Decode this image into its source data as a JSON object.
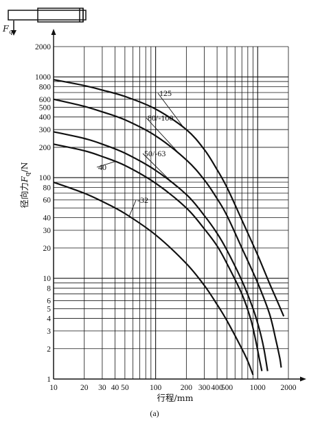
{
  "icon": {
    "force_symbol": "F",
    "force_subscript": "q",
    "name": "cylinder-icon"
  },
  "caption": "(a)",
  "chart_data": {
    "type": "line",
    "title": "",
    "xlabel": "行程/mm",
    "ylabel_prefix": "径向力",
    "ylabel_symbol": "F",
    "ylabel_subscript": "q",
    "ylabel_suffix": "/N",
    "x_scale": "log",
    "y_scale": "log",
    "xlim": [
      10,
      2000
    ],
    "ylim": [
      1,
      2000
    ],
    "grid": true,
    "x_ticks": [
      {
        "v": 10,
        "label": "10"
      },
      {
        "v": 20,
        "label": "20"
      },
      {
        "v": 30,
        "label": "30"
      },
      {
        "v": 40,
        "label": "40"
      },
      {
        "v": 50,
        "label": "50"
      },
      {
        "v": 100,
        "label": "100"
      },
      {
        "v": 200,
        "label": "200"
      },
      {
        "v": 300,
        "label": "300"
      },
      {
        "v": 400,
        "label": "400"
      },
      {
        "v": 500,
        "label": "500"
      },
      {
        "v": 1000,
        "label": "1000"
      },
      {
        "v": 2000,
        "label": "2000"
      }
    ],
    "y_ticks": [
      {
        "v": 1,
        "label": "1"
      },
      {
        "v": 2,
        "label": "2"
      },
      {
        "v": 3,
        "label": "3"
      },
      {
        "v": 4,
        "label": "4"
      },
      {
        "v": 5,
        "label": "5"
      },
      {
        "v": 6,
        "label": "6"
      },
      {
        "v": 8,
        "label": "8"
      },
      {
        "v": 10,
        "label": "10"
      },
      {
        "v": 20,
        "label": "20"
      },
      {
        "v": 30,
        "label": "30"
      },
      {
        "v": 40,
        "label": "40"
      },
      {
        "v": 60,
        "label": "60"
      },
      {
        "v": 80,
        "label": "80"
      },
      {
        "v": 100,
        "label": "100"
      },
      {
        "v": 200,
        "label": "200"
      },
      {
        "v": 300,
        "label": "300"
      },
      {
        "v": 400,
        "label": "400"
      },
      {
        "v": 500,
        "label": "500"
      },
      {
        "v": 600,
        "label": "600"
      },
      {
        "v": 800,
        "label": "800"
      },
      {
        "v": 1000,
        "label": "1000"
      },
      {
        "v": 2000,
        "label": "2000"
      }
    ],
    "series": [
      {
        "name": "125",
        "points": [
          [
            10,
            940
          ],
          [
            20,
            820
          ],
          [
            30,
            740
          ],
          [
            50,
            640
          ],
          [
            100,
            480
          ],
          [
            200,
            300
          ],
          [
            300,
            190
          ],
          [
            400,
            120
          ],
          [
            500,
            80
          ],
          [
            700,
            38
          ],
          [
            1000,
            17
          ],
          [
            1300,
            9
          ],
          [
            1550,
            6
          ],
          [
            1800,
            4.2
          ]
        ]
      },
      {
        "name": "80/-100",
        "points": [
          [
            10,
            600
          ],
          [
            20,
            510
          ],
          [
            30,
            450
          ],
          [
            50,
            375
          ],
          [
            100,
            260
          ],
          [
            200,
            150
          ],
          [
            300,
            95
          ],
          [
            400,
            62
          ],
          [
            500,
            42
          ],
          [
            700,
            20
          ],
          [
            1000,
            9
          ],
          [
            1300,
            4.5
          ],
          [
            1500,
            2.5
          ],
          [
            1650,
            1.6
          ],
          [
            1700,
            1.3
          ]
        ]
      },
      {
        "name": "50/-63",
        "points": [
          [
            10,
            285
          ],
          [
            20,
            245
          ],
          [
            30,
            215
          ],
          [
            50,
            175
          ],
          [
            100,
            118
          ],
          [
            200,
            68
          ],
          [
            300,
            42
          ],
          [
            400,
            28
          ],
          [
            500,
            19
          ],
          [
            700,
            9.5
          ],
          [
            900,
            5
          ],
          [
            1050,
            3
          ],
          [
            1150,
            2
          ],
          [
            1250,
            1.2
          ]
        ]
      },
      {
        "name": "40",
        "points": [
          [
            10,
            215
          ],
          [
            20,
            185
          ],
          [
            30,
            162
          ],
          [
            50,
            132
          ],
          [
            100,
            88
          ],
          [
            200,
            50
          ],
          [
            300,
            31
          ],
          [
            400,
            21
          ],
          [
            500,
            14
          ],
          [
            700,
            7
          ],
          [
            850,
            4
          ],
          [
            950,
            2.5
          ],
          [
            1050,
            1.5
          ],
          [
            1100,
            1.2
          ]
        ]
      },
      {
        "name": "-32",
        "points": [
          [
            10,
            90
          ],
          [
            20,
            70
          ],
          [
            30,
            58
          ],
          [
            50,
            44
          ],
          [
            100,
            27
          ],
          [
            200,
            14
          ],
          [
            300,
            8.5
          ],
          [
            400,
            5.5
          ],
          [
            500,
            3.8
          ],
          [
            700,
            2
          ],
          [
            800,
            1.5
          ],
          [
            900,
            1.1
          ]
        ]
      }
    ],
    "curve_labels": [
      {
        "series": "125",
        "text": "125"
      },
      {
        "series": "80/-100",
        "text": "80/-100"
      },
      {
        "series": "50/-63",
        "text": "50/-63"
      },
      {
        "series": "40",
        "text": "40"
      },
      {
        "series": "-32",
        "text": "-32"
      }
    ]
  }
}
